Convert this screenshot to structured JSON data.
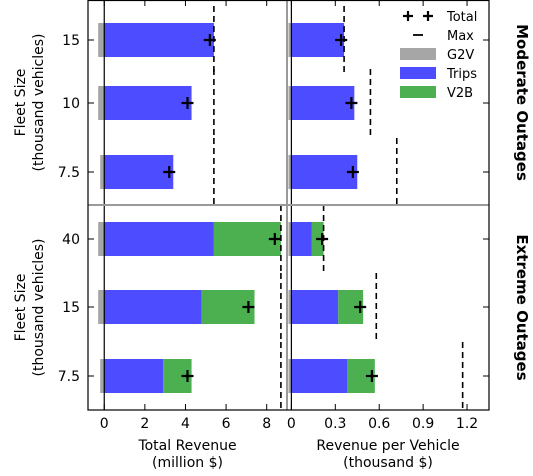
{
  "chart_data": {
    "type": "bar",
    "orientation": "horizontal-stacked",
    "row_facets": [
      "Moderate Outages",
      "Extreme Outages"
    ],
    "ylabel": "Fleet Size\n(thousand vehicles)",
    "legend": {
      "placement": "top-right",
      "entries": [
        {
          "label": "Total",
          "marker": "plus"
        },
        {
          "label": "Max",
          "marker": "dash"
        },
        {
          "label": "G2V",
          "color": "#a6a6a6"
        },
        {
          "label": "Trips",
          "color": "#4d4dff"
        },
        {
          "label": "V2B",
          "color": "#4caf50"
        }
      ]
    },
    "columns": [
      {
        "xlabel": "Total Revenue\n(million $)",
        "xlim": [
          -0.8,
          9.0
        ],
        "xticks": [
          0,
          2,
          4,
          6,
          8
        ],
        "xticklabels": [
          "0",
          "2",
          "4",
          "6",
          "8"
        ]
      },
      {
        "xlabel": "Revenue per Vehicle\n(thousand $)",
        "xlim": [
          -0.03,
          1.35
        ],
        "xticks": [
          0,
          0.3,
          0.6,
          0.9,
          1.2
        ],
        "xticklabels": [
          "0",
          "0.3",
          "0.6",
          "0.9",
          "1.2"
        ]
      }
    ],
    "panels": [
      {
        "row": "Moderate Outages",
        "categories": [
          "15",
          "10",
          "7.5"
        ],
        "total_revenue": {
          "G2V": [
            -0.3,
            -0.3,
            -0.2
          ],
          "Trips": [
            5.4,
            4.3,
            3.4
          ],
          "V2B": [
            0,
            0,
            0
          ],
          "Total": [
            5.2,
            4.1,
            3.2
          ],
          "Max": [
            5.4,
            5.4,
            5.4
          ]
        },
        "revenue_per_vehicle": {
          "G2V": [
            -0.02,
            -0.02,
            -0.02
          ],
          "Trips": [
            0.36,
            0.43,
            0.45
          ],
          "V2B": [
            0,
            0,
            0
          ],
          "Total": [
            0.34,
            0.41,
            0.42
          ],
          "Max": [
            0.36,
            0.54,
            0.72
          ]
        }
      },
      {
        "row": "Extreme Outages",
        "categories": [
          "40",
          "15",
          "7.5"
        ],
        "total_revenue": {
          "G2V": [
            -0.3,
            -0.3,
            -0.2
          ],
          "Trips": [
            5.4,
            4.8,
            2.9
          ],
          "V2B": [
            3.3,
            2.6,
            1.4
          ],
          "Total": [
            8.4,
            7.1,
            4.1
          ],
          "Max": [
            8.7,
            8.7,
            8.7
          ]
        },
        "revenue_per_vehicle": {
          "G2V": [
            -0.02,
            -0.02,
            -0.02
          ],
          "Trips": [
            0.14,
            0.32,
            0.38
          ],
          "V2B": [
            0.08,
            0.17,
            0.19
          ],
          "Total": [
            0.21,
            0.47,
            0.55
          ],
          "Max": [
            0.22,
            0.58,
            1.17
          ]
        }
      }
    ]
  }
}
